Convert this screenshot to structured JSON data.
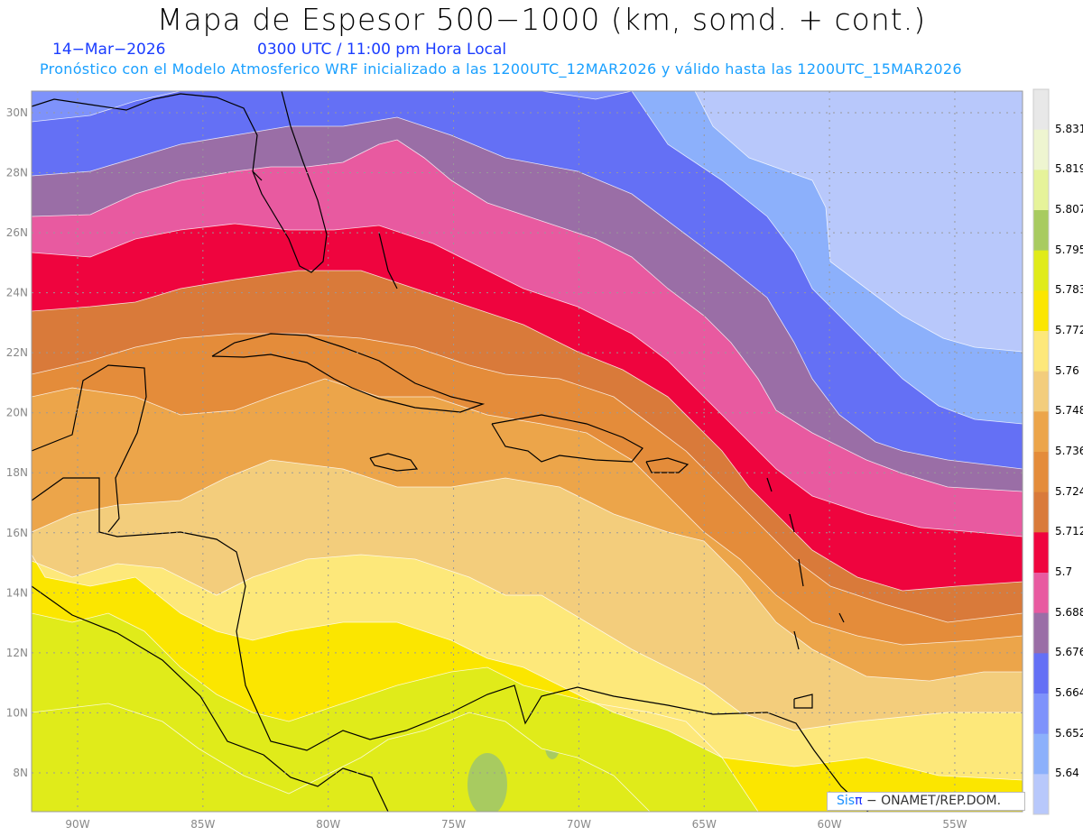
{
  "header": {
    "title": "Mapa de Espesor 500−1000 (km, somd. + cont.)",
    "date": "14−Mar−2026",
    "time": "0300 UTC / 11:00 pm Hora Local",
    "forecast_info": "Pronóstico con el Modelo Atmosferico WRF inicializado a las 1200UTC_12MAR2026 y válido hasta las  1200UTC_15MAR2026"
  },
  "axes": {
    "lat_labels": [
      "30N",
      "28N",
      "26N",
      "24N",
      "22N",
      "20N",
      "18N",
      "16N",
      "14N",
      "12N",
      "10N",
      "8N"
    ],
    "lat_values": [
      30,
      28,
      26,
      24,
      22,
      20,
      18,
      16,
      14,
      12,
      10,
      8
    ],
    "lon_labels": [
      "90W",
      "85W",
      "80W",
      "75W",
      "70W",
      "65W",
      "60W",
      "55W"
    ],
    "lon_values": [
      90,
      85,
      80,
      75,
      70,
      65,
      60,
      55
    ]
  },
  "colorbar": {
    "labels": [
      "5.831",
      "5.819",
      "5.807",
      "5.795",
      "5.783",
      "5.772",
      "5.76",
      "5.748",
      "5.736",
      "5.724",
      "5.712",
      "5.7",
      "5.688",
      "5.676",
      "5.664",
      "5.652",
      "5.64"
    ],
    "colors": [
      "#e8e8e8",
      "#eef5d0",
      "#e6f39a",
      "#a8cb60",
      "#e0eb1a",
      "#fbe600",
      "#fde87a",
      "#f3cd7c",
      "#eca54a",
      "#e48c3a",
      "#d97a3a",
      "#ef043e",
      "#e85aa0",
      "#9a6ea6",
      "#6470f5",
      "#7e92fb",
      "#8cb0fb",
      "#b8c8fb"
    ]
  },
  "credit": {
    "brand_a": "Sis",
    "brand_b": "π",
    "text": "− ONAMET/REP.DOM."
  }
}
